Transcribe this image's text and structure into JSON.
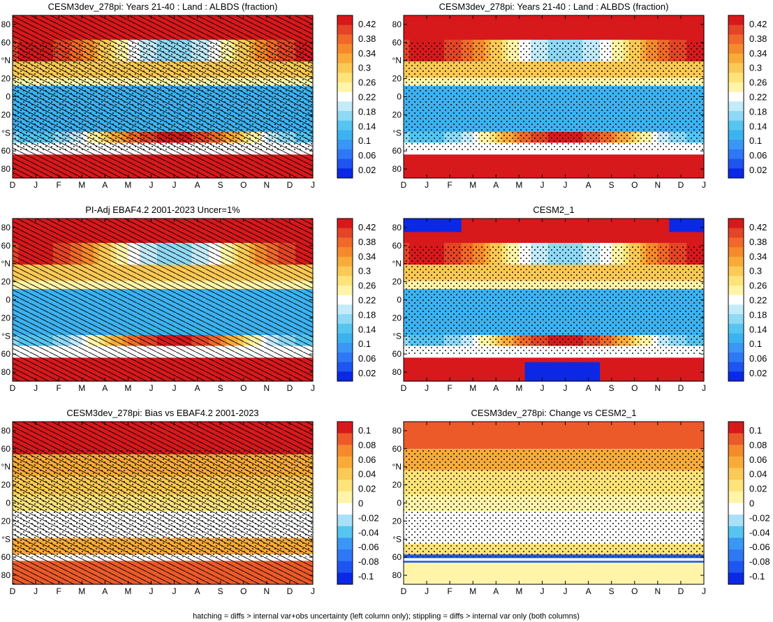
{
  "months": [
    "D",
    "J",
    "F",
    "M",
    "A",
    "M",
    "J",
    "J",
    "A",
    "S",
    "O",
    "N",
    "D",
    "J"
  ],
  "lat_ticks": [
    "80",
    "60",
    "°N",
    "20",
    "0",
    "20",
    "°S",
    "60",
    "80"
  ],
  "lat_values": [
    80,
    60,
    40,
    20,
    0,
    -20,
    -40,
    -60,
    -80
  ],
  "footer": "hatching = diffs > internal var+obs uncertainty (left column only); stippling = diffs > internal var only (both columns)",
  "colors": {
    "albedo_scale": [
      "#0a28e6",
      "#1e55f0",
      "#2f78f5",
      "#3a97f5",
      "#3db2f0",
      "#56c5f0",
      "#8fd9f5",
      "#c3ebfa",
      "#ffffff",
      "#fff4a8",
      "#fde37a",
      "#fbc955",
      "#f9ab3a",
      "#f58a2c",
      "#f0682a",
      "#e44427",
      "#d7191c"
    ],
    "diff_scale": [
      "#0a28e6",
      "#1e55f0",
      "#2f78f5",
      "#3a97f5",
      "#56c5f0",
      "#a8e0f7",
      "#ffffff",
      "#fff4a8",
      "#fde37a",
      "#fbc955",
      "#f9ab3a",
      "#f58a2c",
      "#ec5a2a",
      "#d7191c"
    ]
  },
  "chart_data": [
    {
      "type": "heatmap",
      "title": "CESM3dev_278pi: Years 21-40 : Land : ALBDS (fraction)",
      "x": [
        "D",
        "J",
        "F",
        "M",
        "A",
        "M",
        "J",
        "J",
        "A",
        "S",
        "O",
        "N",
        "D",
        "J"
      ],
      "y": [
        80,
        60,
        40,
        20,
        0,
        -20,
        -40,
        -60,
        -80
      ],
      "colorbar_labels": [
        "0.42",
        "0.38",
        "0.34",
        "0.3",
        "0.26",
        "0.22",
        "0.18",
        "0.14",
        "0.1",
        "0.06",
        "0.02"
      ],
      "colorbar_values": [
        0.42,
        0.38,
        0.34,
        0.3,
        0.26,
        0.22,
        0.18,
        0.14,
        0.1,
        0.06,
        0.02
      ],
      "overlay": "hatching+stippling"
    },
    {
      "type": "heatmap",
      "title": "CESM3dev_278pi: Years 21-40 : Land : ALBDS (fraction)",
      "x": [
        "D",
        "J",
        "F",
        "M",
        "A",
        "M",
        "J",
        "J",
        "A",
        "S",
        "O",
        "N",
        "D",
        "J"
      ],
      "y": [
        80,
        60,
        40,
        20,
        0,
        -20,
        -40,
        -60,
        -80
      ],
      "colorbar_labels": [
        "0.42",
        "0.38",
        "0.34",
        "0.3",
        "0.26",
        "0.22",
        "0.18",
        "0.14",
        "0.1",
        "0.06",
        "0.02"
      ],
      "colorbar_values": [
        0.42,
        0.38,
        0.34,
        0.3,
        0.26,
        0.22,
        0.18,
        0.14,
        0.1,
        0.06,
        0.02
      ],
      "overlay": "stippling"
    },
    {
      "type": "heatmap",
      "title": "PI-Adj EBAF4.2 2001-2023 Uncer=1%",
      "x": [
        "D",
        "J",
        "F",
        "M",
        "A",
        "M",
        "J",
        "J",
        "A",
        "S",
        "O",
        "N",
        "D",
        "J"
      ],
      "y": [
        80,
        60,
        40,
        20,
        0,
        -20,
        -40,
        -60,
        -80
      ],
      "colorbar_labels": [
        "0.42",
        "0.38",
        "0.34",
        "0.3",
        "0.26",
        "0.22",
        "0.18",
        "0.14",
        "0.1",
        "0.06",
        "0.02"
      ],
      "colorbar_values": [
        0.42,
        0.38,
        0.34,
        0.3,
        0.26,
        0.22,
        0.18,
        0.14,
        0.1,
        0.06,
        0.02
      ],
      "overlay": "hatching"
    },
    {
      "type": "heatmap",
      "title": "CESM2_1",
      "x": [
        "D",
        "J",
        "F",
        "M",
        "A",
        "M",
        "J",
        "J",
        "A",
        "S",
        "O",
        "N",
        "D",
        "J"
      ],
      "y": [
        80,
        60,
        40,
        20,
        0,
        -20,
        -40,
        -60,
        -80
      ],
      "colorbar_labels": [
        "0.42",
        "0.38",
        "0.34",
        "0.3",
        "0.26",
        "0.22",
        "0.18",
        "0.14",
        "0.1",
        "0.06",
        "0.02"
      ],
      "colorbar_values": [
        0.42,
        0.38,
        0.34,
        0.3,
        0.26,
        0.22,
        0.18,
        0.14,
        0.1,
        0.06,
        0.02
      ],
      "overlay": "stippling"
    },
    {
      "type": "heatmap",
      "title": "CESM3dev_278pi: Bias vs EBAF4.2 2001-2023",
      "x": [
        "D",
        "J",
        "F",
        "M",
        "A",
        "M",
        "J",
        "J",
        "A",
        "S",
        "O",
        "N",
        "D",
        "J"
      ],
      "y": [
        80,
        60,
        40,
        20,
        0,
        -20,
        -40,
        -60,
        -80
      ],
      "colorbar_labels": [
        "0.1",
        "0.08",
        "0.06",
        "0.04",
        "0.02",
        "0",
        "-0.02",
        "-0.04",
        "-0.06",
        "-0.08",
        "-0.1"
      ],
      "colorbar_values": [
        0.1,
        0.08,
        0.06,
        0.04,
        0.02,
        0,
        -0.02,
        -0.04,
        -0.06,
        -0.08,
        -0.1
      ],
      "overlay": "hatching+stippling"
    },
    {
      "type": "heatmap",
      "title": "CESM3dev_278pi: Change vs CESM2_1",
      "x": [
        "D",
        "J",
        "F",
        "M",
        "A",
        "M",
        "J",
        "J",
        "A",
        "S",
        "O",
        "N",
        "D",
        "J"
      ],
      "y": [
        80,
        60,
        40,
        20,
        0,
        -20,
        -40,
        -60,
        -80
      ],
      "colorbar_labels": [
        "0.1",
        "0.08",
        "0.06",
        "0.04",
        "0.02",
        "0",
        "-0.02",
        "-0.04",
        "-0.06",
        "-0.08",
        "-0.1"
      ],
      "colorbar_values": [
        0.1,
        0.08,
        0.06,
        0.04,
        0.02,
        0,
        -0.02,
        -0.04,
        -0.06,
        -0.08,
        -0.1
      ],
      "overlay": "stippling"
    }
  ]
}
